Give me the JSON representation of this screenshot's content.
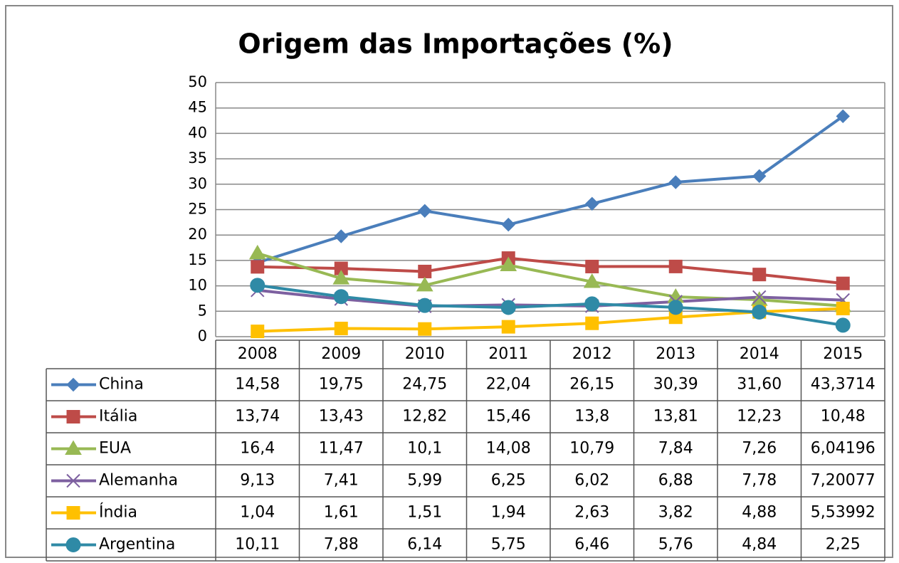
{
  "chart_data": {
    "type": "line",
    "title": "Origem das Importações (%)",
    "categories": [
      "2008",
      "2009",
      "2010",
      "2011",
      "2012",
      "2013",
      "2014",
      "2015"
    ],
    "ylim": [
      0,
      50
    ],
    "yticks": [
      0,
      5,
      10,
      15,
      20,
      25,
      30,
      35,
      40,
      45,
      50
    ],
    "grid": true,
    "series": [
      {
        "name": "China",
        "color": "#4a7ebb",
        "marker": "diamond",
        "values": [
          14.58,
          19.75,
          24.75,
          22.04,
          26.15,
          30.39,
          31.6,
          43.3714
        ],
        "value_labels": [
          "14,58",
          "19,75",
          "24,75",
          "22,04",
          "26,15",
          "30,39",
          "31,60",
          "43,3714"
        ]
      },
      {
        "name": "Itália",
        "color": "#be4b48",
        "marker": "square",
        "values": [
          13.74,
          13.43,
          12.82,
          15.46,
          13.8,
          13.81,
          12.23,
          10.48
        ],
        "value_labels": [
          "13,74",
          "13,43",
          "12,82",
          "15,46",
          "13,8",
          "13,81",
          "12,23",
          "10,48"
        ]
      },
      {
        "name": "EUA",
        "color": "#98b954",
        "marker": "triangle",
        "values": [
          16.4,
          11.47,
          10.1,
          14.08,
          10.79,
          7.84,
          7.26,
          6.04196
        ],
        "value_labels": [
          "16,4",
          "11,47",
          "10,1",
          "14,08",
          "10,79",
          "7,84",
          "7,26",
          "6,04196"
        ]
      },
      {
        "name": "Alemanha",
        "color": "#7d60a0",
        "marker": "x",
        "values": [
          9.13,
          7.41,
          5.99,
          6.25,
          6.02,
          6.88,
          7.78,
          7.20077
        ],
        "value_labels": [
          "9,13",
          "7,41",
          "5,99",
          "6,25",
          "6,02",
          "6,88",
          "7,78",
          "7,20077"
        ]
      },
      {
        "name": "Índia",
        "color": "#ffc000",
        "marker": "square",
        "values": [
          1.04,
          1.61,
          1.51,
          1.94,
          2.63,
          3.82,
          4.88,
          5.53992
        ],
        "value_labels": [
          "1,04",
          "1,61",
          "1,51",
          "1,94",
          "2,63",
          "3,82",
          "4,88",
          "5,53992"
        ]
      },
      {
        "name": "Argentina",
        "color": "#2f8aa6",
        "marker": "circle",
        "values": [
          10.11,
          7.88,
          6.14,
          5.75,
          6.46,
          5.76,
          4.84,
          2.25
        ],
        "value_labels": [
          "10,11",
          "7,88",
          "6,14",
          "5,75",
          "6,46",
          "5,76",
          "4,84",
          "2,25"
        ]
      }
    ]
  }
}
